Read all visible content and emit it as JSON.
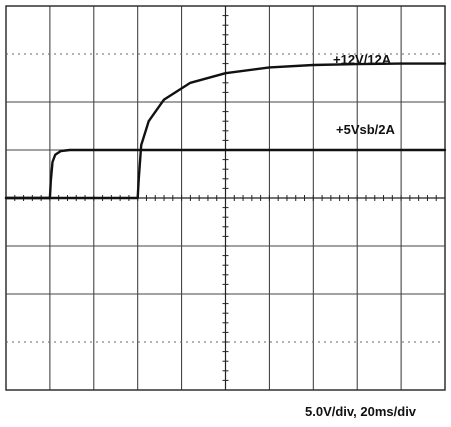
{
  "chart_data": {
    "type": "line",
    "grid": true,
    "divisions": {
      "x": 10,
      "y": 8
    },
    "xlim": [
      0,
      10
    ],
    "ylim": [
      -4,
      4
    ],
    "series": [
      {
        "name": "+12V/12A",
        "color": "#111111",
        "x": [
          0,
          3,
          3.02,
          3.08,
          3.25,
          3.6,
          4.2,
          5.0,
          6.0,
          7.0,
          8.0,
          9.0,
          10
        ],
        "y": [
          0,
          0,
          0.35,
          1.1,
          1.6,
          2.05,
          2.4,
          2.6,
          2.72,
          2.77,
          2.79,
          2.8,
          2.8
        ]
      },
      {
        "name": "+5Vsb/2A",
        "color": "#111111",
        "x": [
          0,
          1,
          1.02,
          1.06,
          1.12,
          1.25,
          1.45,
          10
        ],
        "y": [
          0,
          0,
          0.35,
          0.75,
          0.9,
          0.98,
          1.0,
          1.0
        ]
      }
    ],
    "labels": [
      {
        "text": "+12V/12A",
        "series": 0
      },
      {
        "text": "+5Vsb/2A",
        "series": 1
      }
    ]
  },
  "footer": {
    "scale_note": "5.0V/div,  20ms/div"
  }
}
